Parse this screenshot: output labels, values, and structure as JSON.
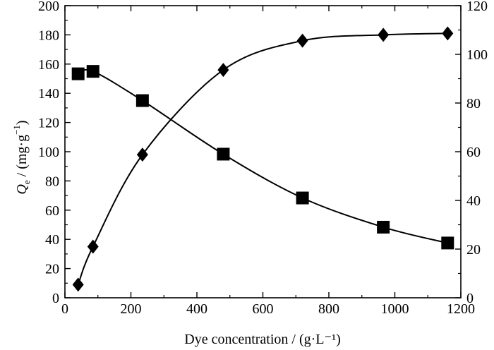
{
  "chart_data": {
    "type": "scatter",
    "xlabel": "Dye concentration / (g·L⁻¹)",
    "ylabel_left": {
      "symbol": "Q",
      "subscript": "e",
      "rest": " / (mg·g",
      "superscript": "−1",
      "close": ")"
    },
    "xlim": [
      0,
      1200
    ],
    "ylim_left": [
      0,
      200
    ],
    "ylim_right": [
      0,
      120
    ],
    "xticks": [
      "0",
      "200",
      "400",
      "600",
      "800",
      "1000",
      "1200"
    ],
    "yticks_left": [
      "0",
      "20",
      "40",
      "60",
      "80",
      "100",
      "120",
      "140",
      "160",
      "180",
      "200"
    ],
    "yticks_right": [
      "0",
      "20",
      "40",
      "60",
      "80",
      "100",
      "120"
    ],
    "grid": false,
    "series": [
      {
        "marker": "diamond",
        "axis": "left",
        "x": [
          40,
          85,
          235,
          480,
          720,
          965,
          1160
        ],
        "y": [
          9,
          35,
          98,
          156,
          176,
          180,
          181
        ]
      },
      {
        "marker": "square",
        "axis": "right",
        "x": [
          40,
          85,
          235,
          480,
          720,
          965,
          1160
        ],
        "y": [
          92,
          93,
          81,
          59,
          41,
          29,
          22.5
        ]
      }
    ]
  }
}
